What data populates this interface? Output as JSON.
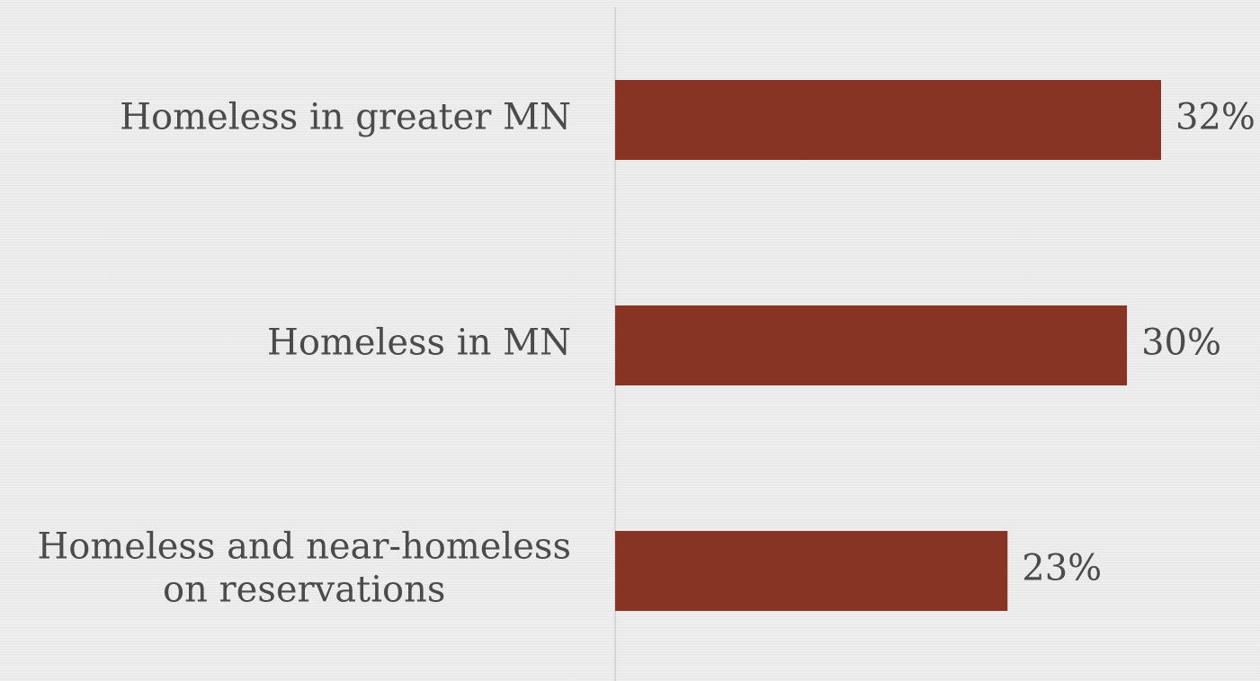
{
  "chart_data": {
    "type": "bar",
    "orientation": "horizontal",
    "categories": [
      [
        "Homeless in greater MN"
      ],
      [
        "Homeless in MN"
      ],
      [
        "Homeless and near-homeless",
        "on reservations"
      ]
    ],
    "values": [
      32,
      30,
      23
    ],
    "value_labels": [
      "32%",
      "30%",
      "23%"
    ],
    "xlim": [
      0,
      32
    ],
    "grid": false,
    "legend": "none",
    "colors": {
      "bar": "#873424",
      "axis": "#d6d6d6",
      "text": "#4b4b4b",
      "background": "#ebebeb"
    }
  }
}
